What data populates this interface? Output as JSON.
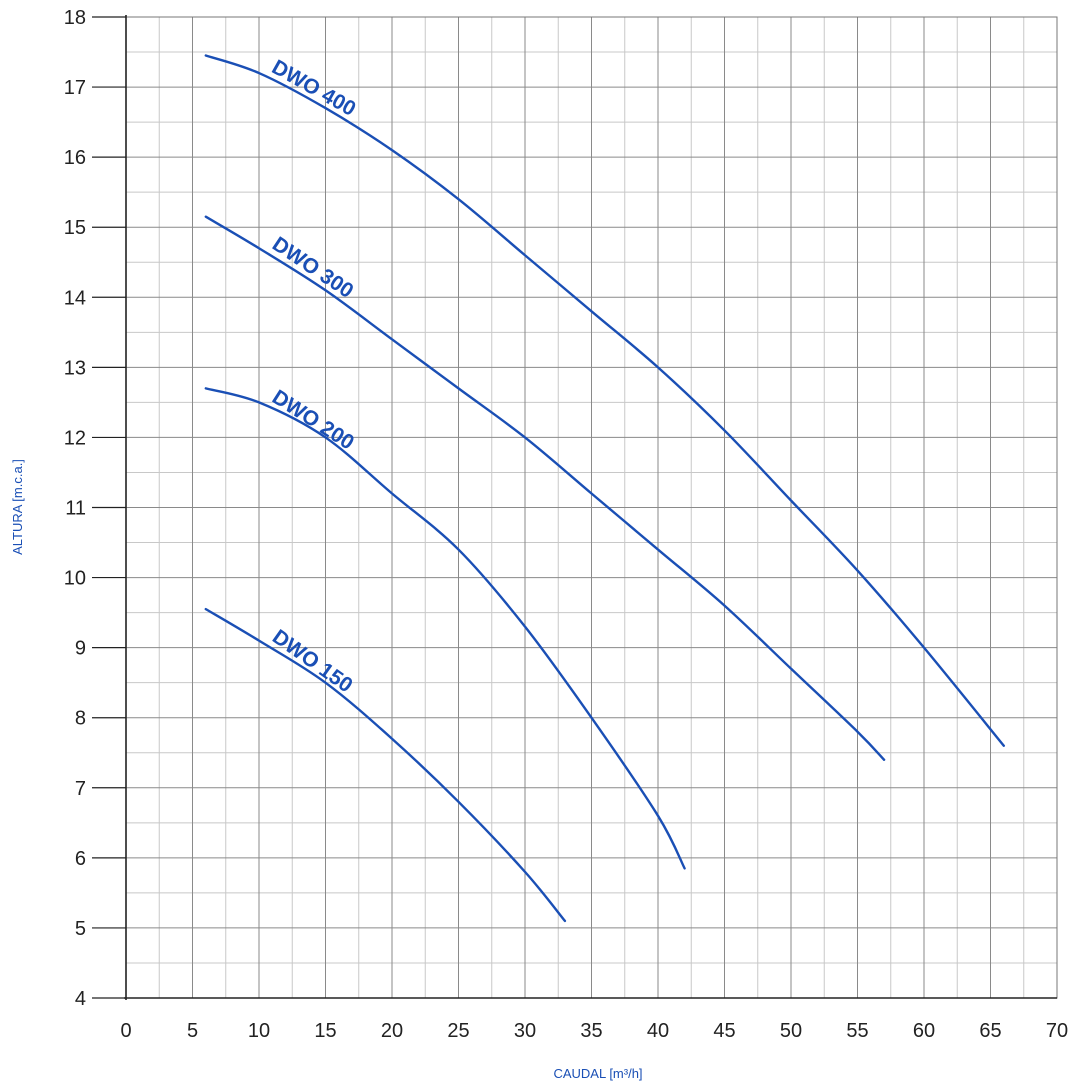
{
  "chart_data": {
    "type": "line",
    "xlabel": "CAUDAL [m³/h]",
    "ylabel": "ALTURA [m.c.a.]",
    "xlim": [
      0,
      70
    ],
    "ylim": [
      4,
      18
    ],
    "x_ticks": [
      0,
      5,
      10,
      15,
      20,
      25,
      30,
      35,
      40,
      45,
      50,
      55,
      60,
      65,
      70
    ],
    "y_ticks": [
      4,
      5,
      6,
      7,
      8,
      9,
      10,
      11,
      12,
      13,
      14,
      15,
      16,
      17,
      18
    ],
    "grid": true,
    "line_color": "#1a4fb5",
    "series": [
      {
        "name": "DWO 400",
        "points": [
          [
            6,
            17.45
          ],
          [
            10,
            17.2
          ],
          [
            15,
            16.7
          ],
          [
            20,
            16.1
          ],
          [
            25,
            15.4
          ],
          [
            30,
            14.6
          ],
          [
            35,
            13.8
          ],
          [
            40,
            13.0
          ],
          [
            45,
            12.1
          ],
          [
            50,
            11.1
          ],
          [
            55,
            10.1
          ],
          [
            60,
            9.0
          ],
          [
            66,
            7.6
          ]
        ]
      },
      {
        "name": "DWO 300",
        "points": [
          [
            6,
            15.15
          ],
          [
            10,
            14.7
          ],
          [
            15,
            14.1
          ],
          [
            20,
            13.4
          ],
          [
            25,
            12.7
          ],
          [
            30,
            12.0
          ],
          [
            35,
            11.2
          ],
          [
            40,
            10.4
          ],
          [
            45,
            9.6
          ],
          [
            50,
            8.7
          ],
          [
            55,
            7.8
          ],
          [
            57,
            7.4
          ]
        ]
      },
      {
        "name": "DWO 200",
        "points": [
          [
            6,
            12.7
          ],
          [
            10,
            12.5
          ],
          [
            15,
            12.0
          ],
          [
            20,
            11.2
          ],
          [
            25,
            10.4
          ],
          [
            30,
            9.3
          ],
          [
            35,
            8.0
          ],
          [
            40,
            6.6
          ],
          [
            42,
            5.85
          ]
        ]
      },
      {
        "name": "DWO 150",
        "points": [
          [
            6,
            9.55
          ],
          [
            10,
            9.1
          ],
          [
            15,
            8.5
          ],
          [
            20,
            7.7
          ],
          [
            25,
            6.8
          ],
          [
            30,
            5.8
          ],
          [
            33,
            5.1
          ]
        ]
      }
    ]
  }
}
